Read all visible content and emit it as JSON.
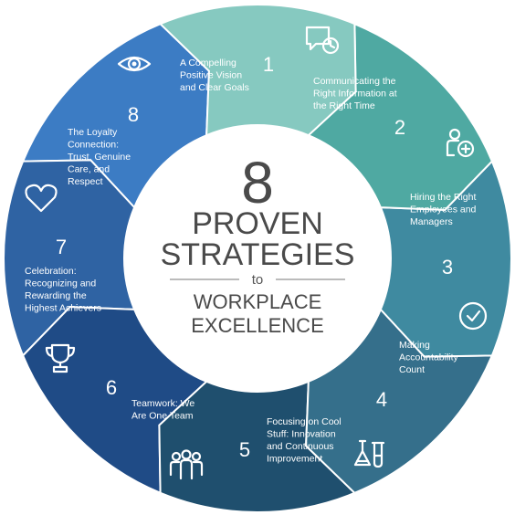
{
  "center": {
    "number": "8",
    "line1": "PROVEN",
    "line2": "STRATEGIES",
    "connector": "to",
    "line3": "WORKPLACE",
    "line4": "EXCELLENCE"
  },
  "segments": [
    {
      "number": "1",
      "lines": [
        "A Compelling",
        "Positive Vision",
        "and Clear Goals"
      ],
      "icon": "eye-icon",
      "color": "#86c9c0"
    },
    {
      "number": "2",
      "lines": [
        "Communicating the",
        "Right Information at",
        "the Right Time"
      ],
      "icon": "chat-clock-icon",
      "color": "#4fa9a2"
    },
    {
      "number": "3",
      "lines": [
        "Hiring the Right",
        "Employees and",
        "Managers"
      ],
      "icon": "add-person-icon",
      "color": "#3f8aa0"
    },
    {
      "number": "4",
      "lines": [
        "Making",
        "Accountability",
        "Count"
      ],
      "icon": "checkmark-icon",
      "color": "#356f8b"
    },
    {
      "number": "5",
      "lines": [
        "Focusing on Cool",
        "Stuff: Innovation",
        "and Continuous",
        "Improvement"
      ],
      "icon": "lab-flask-icon",
      "color": "#1f4f6e"
    },
    {
      "number": "6",
      "lines": [
        "Teamwork: We",
        "Are One Team"
      ],
      "icon": "team-icon",
      "color": "#1f4b86"
    },
    {
      "number": "7",
      "lines": [
        "Celebration:",
        "Recognizing and",
        "Rewarding the",
        "Highest Achievers"
      ],
      "icon": "trophy-icon",
      "color": "#2f63a3"
    },
    {
      "number": "8",
      "lines": [
        "The Loyalty",
        "Connection:",
        "Trust, Genuine",
        "Care, and",
        "Respect"
      ],
      "icon": "heart-icon",
      "color": "#3c7cc4"
    }
  ]
}
